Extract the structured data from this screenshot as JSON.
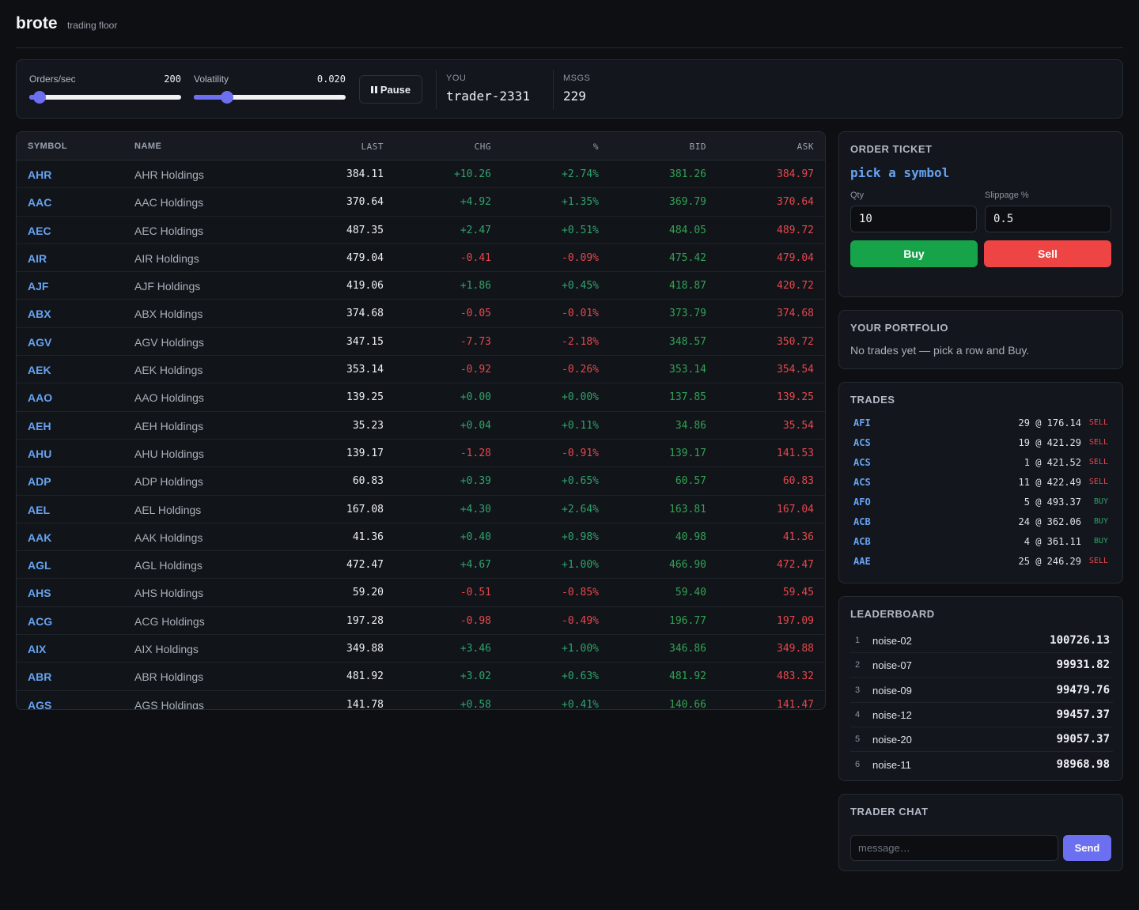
{
  "header": {
    "brand": "brote",
    "subtitle": "trading floor"
  },
  "controls": {
    "orders": {
      "label": "Orders/sec",
      "value": "200",
      "fraction": 0.07
    },
    "volatility": {
      "label": "Volatility",
      "value": "0.020",
      "fraction": 0.22
    },
    "pause_label": "Pause",
    "pause_icon": "pause-icon",
    "you": {
      "label": "YOU",
      "value": "trader-2331"
    },
    "msgs": {
      "label": "MSGS",
      "value": "229"
    }
  },
  "market": {
    "columns": {
      "symbol": "SYMBOL",
      "name": "NAME",
      "last": "LAST",
      "chg": "CHG",
      "pct": "%",
      "bid": "BID",
      "ask": "ASK"
    },
    "rows": [
      {
        "symbol": "AHR",
        "name": "AHR Holdings",
        "last": "384.11",
        "chg": "+10.26",
        "pct": "+2.74%",
        "bid": "381.26",
        "ask": "384.97"
      },
      {
        "symbol": "AAC",
        "name": "AAC Holdings",
        "last": "370.64",
        "chg": "+4.92",
        "pct": "+1.35%",
        "bid": "369.79",
        "ask": "370.64"
      },
      {
        "symbol": "AEC",
        "name": "AEC Holdings",
        "last": "487.35",
        "chg": "+2.47",
        "pct": "+0.51%",
        "bid": "484.05",
        "ask": "489.72"
      },
      {
        "symbol": "AIR",
        "name": "AIR Holdings",
        "last": "479.04",
        "chg": "-0.41",
        "pct": "-0.09%",
        "bid": "475.42",
        "ask": "479.04"
      },
      {
        "symbol": "AJF",
        "name": "AJF Holdings",
        "last": "419.06",
        "chg": "+1.86",
        "pct": "+0.45%",
        "bid": "418.87",
        "ask": "420.72"
      },
      {
        "symbol": "ABX",
        "name": "ABX Holdings",
        "last": "374.68",
        "chg": "-0.05",
        "pct": "-0.01%",
        "bid": "373.79",
        "ask": "374.68"
      },
      {
        "symbol": "AGV",
        "name": "AGV Holdings",
        "last": "347.15",
        "chg": "-7.73",
        "pct": "-2.18%",
        "bid": "348.57",
        "ask": "350.72"
      },
      {
        "symbol": "AEK",
        "name": "AEK Holdings",
        "last": "353.14",
        "chg": "-0.92",
        "pct": "-0.26%",
        "bid": "353.14",
        "ask": "354.54"
      },
      {
        "symbol": "AAO",
        "name": "AAO Holdings",
        "last": "139.25",
        "chg": "+0.00",
        "pct": "+0.00%",
        "bid": "137.85",
        "ask": "139.25"
      },
      {
        "symbol": "AEH",
        "name": "AEH Holdings",
        "last": "35.23",
        "chg": "+0.04",
        "pct": "+0.11%",
        "bid": "34.86",
        "ask": "35.54"
      },
      {
        "symbol": "AHU",
        "name": "AHU Holdings",
        "last": "139.17",
        "chg": "-1.28",
        "pct": "-0.91%",
        "bid": "139.17",
        "ask": "141.53"
      },
      {
        "symbol": "ADP",
        "name": "ADP Holdings",
        "last": "60.83",
        "chg": "+0.39",
        "pct": "+0.65%",
        "bid": "60.57",
        "ask": "60.83"
      },
      {
        "symbol": "AEL",
        "name": "AEL Holdings",
        "last": "167.08",
        "chg": "+4.30",
        "pct": "+2.64%",
        "bid": "163.81",
        "ask": "167.04"
      },
      {
        "symbol": "AAK",
        "name": "AAK Holdings",
        "last": "41.36",
        "chg": "+0.40",
        "pct": "+0.98%",
        "bid": "40.98",
        "ask": "41.36"
      },
      {
        "symbol": "AGL",
        "name": "AGL Holdings",
        "last": "472.47",
        "chg": "+4.67",
        "pct": "+1.00%",
        "bid": "466.90",
        "ask": "472.47"
      },
      {
        "symbol": "AHS",
        "name": "AHS Holdings",
        "last": "59.20",
        "chg": "-0.51",
        "pct": "-0.85%",
        "bid": "59.40",
        "ask": "59.45"
      },
      {
        "symbol": "ACG",
        "name": "ACG Holdings",
        "last": "197.28",
        "chg": "-0.98",
        "pct": "-0.49%",
        "bid": "196.77",
        "ask": "197.09"
      },
      {
        "symbol": "AIX",
        "name": "AIX Holdings",
        "last": "349.88",
        "chg": "+3.46",
        "pct": "+1.00%",
        "bid": "346.86",
        "ask": "349.88"
      },
      {
        "symbol": "ABR",
        "name": "ABR Holdings",
        "last": "481.92",
        "chg": "+3.02",
        "pct": "+0.63%",
        "bid": "481.92",
        "ask": "483.32"
      },
      {
        "symbol": "AGS",
        "name": "AGS Holdings",
        "last": "141.78",
        "chg": "+0.58",
        "pct": "+0.41%",
        "bid": "140.66",
        "ask": "141.47"
      }
    ]
  },
  "ticket": {
    "title": "ORDER TICKET",
    "symbol_prompt": "pick a symbol",
    "qty_label": "Qty",
    "qty_value": "10",
    "slippage_label": "Slippage %",
    "slippage_value": "0.5",
    "buy_label": "Buy",
    "sell_label": "Sell"
  },
  "portfolio": {
    "title": "YOUR PORTFOLIO",
    "empty_message": "No trades yet — pick a row and Buy."
  },
  "trades": {
    "title": "TRADES",
    "items": [
      {
        "symbol": "AFI",
        "detail": "29 @ 176.14",
        "side": "SELL"
      },
      {
        "symbol": "ACS",
        "detail": "19 @ 421.29",
        "side": "SELL"
      },
      {
        "symbol": "ACS",
        "detail": "1 @ 421.52",
        "side": "SELL"
      },
      {
        "symbol": "ACS",
        "detail": "11 @ 422.49",
        "side": "SELL"
      },
      {
        "symbol": "AFO",
        "detail": "5 @ 493.37",
        "side": "BUY"
      },
      {
        "symbol": "ACB",
        "detail": "24 @ 362.06",
        "side": "BUY"
      },
      {
        "symbol": "ACB",
        "detail": "4 @ 361.11",
        "side": "BUY"
      },
      {
        "symbol": "AAE",
        "detail": "25 @ 246.29",
        "side": "SELL"
      }
    ]
  },
  "leaderboard": {
    "title": "LEADERBOARD",
    "items": [
      {
        "rank": "1",
        "name": "noise-02",
        "score": "100726.13"
      },
      {
        "rank": "2",
        "name": "noise-07",
        "score": "99931.82"
      },
      {
        "rank": "3",
        "name": "noise-09",
        "score": "99479.76"
      },
      {
        "rank": "4",
        "name": "noise-12",
        "score": "99457.37"
      },
      {
        "rank": "5",
        "name": "noise-20",
        "score": "99057.37"
      },
      {
        "rank": "6",
        "name": "noise-11",
        "score": "98968.98"
      }
    ]
  },
  "chat": {
    "title": "TRADER CHAT",
    "placeholder": "message…",
    "send_label": "Send"
  },
  "colors": {
    "accent": "#6b6ff0",
    "up": "#2fa36b",
    "down": "#e5484d",
    "buy": "#16a34a",
    "sell": "#ef4444",
    "symbol": "#66a3f2"
  }
}
